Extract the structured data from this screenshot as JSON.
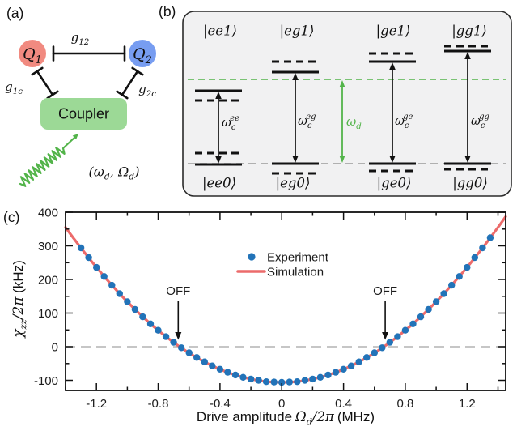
{
  "figure": {
    "panel_a_label": "(a)",
    "panel_b_label": "(b)",
    "panel_c_label": "(c)"
  },
  "colors": {
    "qubit1": "#f18a80",
    "qubit2": "#779df1",
    "coupler": "#9cd996",
    "drive_green": "#53b44a",
    "experiment_blue": "#2273b8",
    "simulation_red": "#ec6b6b",
    "panel_b_bg": "#f1f1f2"
  },
  "panel_a": {
    "qubit1": "Q_{1}",
    "qubit2": "Q_{2}",
    "coupling_q1_q2": "g_{12}",
    "coupling_q1_coupler": "g_{1c}",
    "coupling_q2_coupler": "g_{2c}",
    "coupler": "Coupler",
    "drive_label": "(ω_{d}, Ω_{d})"
  },
  "panel_b": {
    "columns": [
      {
        "top_state": "|ee1⟩",
        "bottom_state": "|ee0⟩",
        "transition": "ω_{c}^{ee}"
      },
      {
        "top_state": "|eg1⟩",
        "bottom_state": "|eg0⟩",
        "transition": "ω_{c}^{eg}"
      },
      {
        "top_state": "|ge1⟩",
        "bottom_state": "|ge0⟩",
        "transition": "ω_{c}^{ge}"
      },
      {
        "top_state": "|gg1⟩",
        "bottom_state": "|gg0⟩",
        "transition": "ω_{c}^{gg}"
      }
    ],
    "drive_freq_label": "ω_{d}"
  },
  "axis_labels": {
    "x_text": "Drive amplitude",
    "x_math": "Ω_{d}/2π",
    "x_unit": "(MHz)",
    "y_math": "χ_{zz}/2π",
    "y_unit": "(kHz)"
  },
  "chart_data": {
    "type": "scatter",
    "title": "",
    "xlabel": "Drive amplitude Ω_d/2π (MHz)",
    "ylabel": "χ_zz/2π (kHz)",
    "xlim": [
      -1.4,
      1.45
    ],
    "ylim": [
      -130,
      400
    ],
    "x_ticks": [
      -1.2,
      -0.8,
      -0.4,
      0,
      0.4,
      0.8,
      1.2
    ],
    "y_ticks": [
      -100,
      0,
      100,
      200,
      300,
      400
    ],
    "x_minor_step": 0.2,
    "y_minor_step": 50,
    "grid": false,
    "zero_line_dashed": true,
    "annotations": [
      {
        "text": "OFF",
        "x": -0.67,
        "points_to_y": 0
      },
      {
        "text": "OFF",
        "x": 0.67,
        "points_to_y": 0
      }
    ],
    "legend": {
      "position": "upper center-left inside",
      "entries": [
        {
          "label": "Experiment",
          "marker": "dot",
          "color": "#2273b8"
        },
        {
          "label": "Simulation",
          "marker": "line",
          "color": "#ec6b6b"
        }
      ]
    },
    "series": [
      {
        "name": "Experiment",
        "type": "scatter",
        "color": "#2273b8",
        "x": [
          -1.3,
          -1.25,
          -1.2,
          -1.15,
          -1.1,
          -1.05,
          -1.0,
          -0.95,
          -0.9,
          -0.85,
          -0.8,
          -0.75,
          -0.7,
          -0.65,
          -0.6,
          -0.55,
          -0.5,
          -0.45,
          -0.4,
          -0.35,
          -0.3,
          -0.25,
          -0.2,
          -0.15,
          -0.1,
          -0.05,
          0,
          0.05,
          0.1,
          0.15,
          0.2,
          0.25,
          0.3,
          0.35,
          0.4,
          0.45,
          0.5,
          0.55,
          0.6,
          0.65,
          0.7,
          0.75,
          0.8,
          0.85,
          0.9,
          0.95,
          1.0,
          1.05,
          1.1,
          1.15,
          1.2,
          1.25,
          1.3,
          1.35
        ],
        "y": [
          294,
          265,
          236,
          209,
          183,
          158,
          134,
          111,
          89,
          68,
          49,
          30,
          13,
          -3,
          -18,
          -32,
          -45,
          -57,
          -67,
          -76,
          -84,
          -91,
          -96,
          -100,
          -104,
          -105,
          -106,
          -105,
          -104,
          -100,
          -96,
          -91,
          -84,
          -76,
          -67,
          -57,
          -45,
          -32,
          -18,
          -3,
          13,
          30,
          49,
          68,
          89,
          111,
          134,
          158,
          183,
          209,
          236,
          265,
          294,
          324
        ]
      },
      {
        "name": "Simulation",
        "type": "line",
        "color": "#ec6b6b",
        "model": "y = a2*x^2 + a4*x^4 + c (kHz, x in MHz)",
        "params": {
          "a2": 245,
          "a4": -5,
          "c": -106
        },
        "x_range": [
          -1.4,
          1.45
        ]
      }
    ]
  }
}
